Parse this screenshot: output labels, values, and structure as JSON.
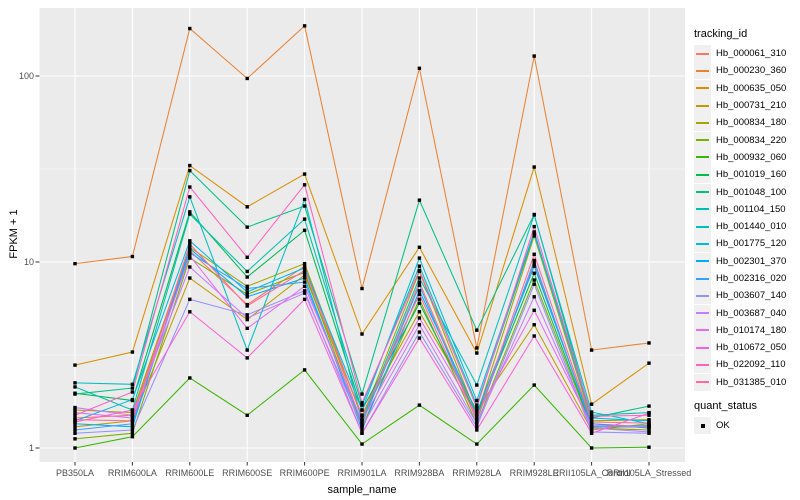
{
  "chart_data": {
    "type": "line",
    "xlabel": "sample_name",
    "ylabel": "FPKM + 1",
    "yscale": "log10",
    "yticks": [
      1,
      10,
      100
    ],
    "y_minor": [
      3.1623,
      31.623
    ],
    "ylim": [
      1,
      200
    ],
    "grid": "on",
    "legend_position": "right",
    "point_shape": "filled-black-square",
    "categories": [
      "PB350LA",
      "RRIM600LA",
      "RRIM600LE",
      "RRIM600SE",
      "RRIM600PE",
      "RRIM901LA",
      "RRIM928BA",
      "RRIM928LA",
      "RRIM928LE",
      "RRII105LA_Control",
      "RRII105LA_Stressed"
    ],
    "series": [
      {
        "name": "Hb_000061_310",
        "color": "#F8766D",
        "values": [
          1.45,
          1.5,
          11.5,
          5.9,
          9.5,
          1.35,
          7.8,
          1.45,
          9.8,
          1.35,
          1.3
        ]
      },
      {
        "name": "Hb_000230_360",
        "color": "#EA8331",
        "values": [
          9.8,
          10.7,
          180,
          97,
          186,
          7.2,
          110,
          3.45,
          128,
          3.36,
          3.67
        ]
      },
      {
        "name": "Hb_000635_050",
        "color": "#D89000",
        "values": [
          2.79,
          3.28,
          33,
          19.8,
          29.7,
          4.1,
          12.0,
          3.24,
          32.4,
          1.72,
          2.86
        ]
      },
      {
        "name": "Hb_000731_210",
        "color": "#C09B00",
        "values": [
          1.3,
          1.4,
          8.2,
          4.9,
          8.5,
          1.5,
          5.4,
          1.6,
          4.6,
          1.25,
          1.35
        ]
      },
      {
        "name": "Hb_000834_180",
        "color": "#A3A500",
        "values": [
          1.6,
          1.55,
          12.0,
          7.4,
          9.8,
          1.45,
          8.9,
          1.5,
          13.8,
          1.4,
          1.42
        ]
      },
      {
        "name": "Hb_000834_220",
        "color": "#7CAE00",
        "values": [
          1.12,
          1.2,
          10.5,
          6.7,
          8.8,
          1.3,
          6.3,
          1.35,
          8.0,
          1.28,
          1.25
        ]
      },
      {
        "name": "Hb_000932_060",
        "color": "#39B600",
        "values": [
          1.0,
          1.15,
          2.38,
          1.5,
          2.63,
          1.05,
          1.7,
          1.05,
          2.18,
          1.0,
          1.01
        ]
      },
      {
        "name": "Hb_001019_160",
        "color": "#00BB4E",
        "values": [
          1.97,
          1.8,
          18.6,
          8.3,
          14.8,
          1.6,
          6.0,
          1.5,
          8.7,
          1.3,
          1.3
        ]
      },
      {
        "name": "Hb_001048_100",
        "color": "#00C087",
        "values": [
          1.95,
          2.1,
          31,
          15.4,
          20,
          1.95,
          21.5,
          4.3,
          18,
          1.45,
          1.68
        ]
      },
      {
        "name": "Hb_001104_150",
        "color": "#00C0B2",
        "values": [
          2.13,
          1.6,
          18.1,
          8.9,
          17,
          1.7,
          9.5,
          1.7,
          14.2,
          1.5,
          1.55
        ]
      },
      {
        "name": "Hb_001440_010",
        "color": "#00BFC4",
        "values": [
          2.24,
          2.2,
          22.4,
          3.36,
          21.7,
          1.4,
          8.2,
          2.18,
          17.9,
          1.56,
          1.35
        ]
      },
      {
        "name": "Hb_001775_120",
        "color": "#00BAE5",
        "values": [
          1.4,
          1.82,
          13,
          6.9,
          9.3,
          1.6,
          10.5,
          1.8,
          14.5,
          1.45,
          1.4
        ]
      },
      {
        "name": "Hb_002301_370",
        "color": "#00ACFC",
        "values": [
          1.35,
          1.3,
          11.8,
          6.5,
          8.2,
          1.25,
          7.0,
          1.55,
          9.5,
          1.35,
          1.28
        ]
      },
      {
        "name": "Hb_002316_020",
        "color": "#35A2FF",
        "values": [
          1.25,
          1.35,
          11.2,
          7.2,
          7.8,
          1.35,
          7.5,
          1.4,
          10.2,
          1.3,
          1.32
        ]
      },
      {
        "name": "Hb_003607_140",
        "color": "#9590FF",
        "values": [
          1.2,
          1.25,
          6.3,
          5.2,
          7.0,
          1.2,
          4.2,
          1.3,
          7.6,
          1.22,
          1.2
        ]
      },
      {
        "name": "Hb_003687_040",
        "color": "#C77CFF",
        "values": [
          1.65,
          1.5,
          9.4,
          5.0,
          6.8,
          1.3,
          4.6,
          1.35,
          6.5,
          1.28,
          1.22
        ]
      },
      {
        "name": "Hb_010174_180",
        "color": "#E76BF3",
        "values": [
          1.55,
          1.45,
          10.8,
          4.4,
          7.4,
          1.4,
          5.0,
          1.5,
          5.5,
          1.32,
          1.3
        ]
      },
      {
        "name": "Hb_010672_050",
        "color": "#FA62DB",
        "values": [
          1.38,
          1.6,
          5.4,
          3.05,
          6.3,
          1.2,
          3.9,
          1.25,
          4.0,
          1.2,
          1.54
        ]
      },
      {
        "name": "Hb_022092_110",
        "color": "#FF61C3",
        "values": [
          1.5,
          2.0,
          25.3,
          10.6,
          26,
          1.75,
          9.0,
          1.65,
          15.5,
          1.48,
          1.5
        ]
      },
      {
        "name": "Hb_031385_010",
        "color": "#FF6A98",
        "values": [
          1.42,
          1.4,
          12.5,
          5.8,
          9.0,
          1.5,
          6.7,
          1.42,
          11.0,
          1.38,
          1.36
        ]
      }
    ]
  },
  "legend": {
    "tracking_title": "tracking_id",
    "quant_title": "quant_status",
    "quant_items": [
      {
        "label": "OK"
      }
    ]
  },
  "colors": {
    "panel_background": "#EBEBEB",
    "gridline": "#FFFFFF",
    "tick": "#333333",
    "axis_text": "#4D4D4D",
    "point": "#000000"
  }
}
